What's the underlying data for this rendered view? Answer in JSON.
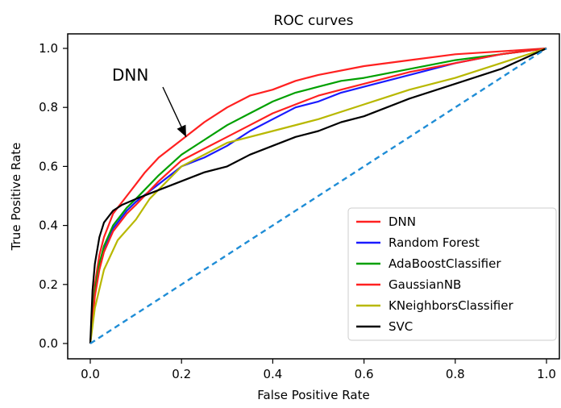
{
  "chart_data": {
    "type": "line",
    "title": "ROC curves",
    "xlabel": "False Positive Rate",
    "ylabel": "True Positive Rate",
    "xlim": [
      0.0,
      1.0
    ],
    "ylim": [
      0.0,
      1.0
    ],
    "xticks": [
      0.0,
      0.2,
      0.4,
      0.6,
      0.8,
      1.0
    ],
    "yticks": [
      0.0,
      0.2,
      0.4,
      0.6,
      0.8,
      1.0
    ],
    "xtick_labels": [
      "0.0",
      "0.2",
      "0.4",
      "0.6",
      "0.8",
      "1.0"
    ],
    "ytick_labels": [
      "0.0",
      "0.2",
      "0.4",
      "0.6",
      "0.8",
      "1.0"
    ],
    "grid": false,
    "legend_position": "lower-right",
    "annotation": {
      "text": "DNN",
      "x": 0.21,
      "y": 0.7
    },
    "diagonal": {
      "x": [
        0.0,
        1.0
      ],
      "y": [
        0.0,
        1.0
      ],
      "color": "#1f8dd6",
      "style": "dashed"
    },
    "series": [
      {
        "name": "DNN",
        "color": "#ff2020",
        "x": [
          0.0,
          0.01,
          0.02,
          0.03,
          0.05,
          0.08,
          0.1,
          0.12,
          0.15,
          0.2,
          0.25,
          0.3,
          0.35,
          0.4,
          0.45,
          0.5,
          0.6,
          0.7,
          0.8,
          0.9,
          1.0
        ],
        "y": [
          0.0,
          0.2,
          0.3,
          0.36,
          0.44,
          0.5,
          0.54,
          0.58,
          0.63,
          0.69,
          0.75,
          0.8,
          0.84,
          0.86,
          0.89,
          0.91,
          0.94,
          0.96,
          0.98,
          0.99,
          1.0
        ]
      },
      {
        "name": "Random Forest",
        "color": "#1a1aff",
        "x": [
          0.0,
          0.01,
          0.02,
          0.03,
          0.05,
          0.08,
          0.1,
          0.15,
          0.2,
          0.25,
          0.3,
          0.35,
          0.4,
          0.45,
          0.5,
          0.55,
          0.6,
          0.7,
          0.8,
          0.9,
          1.0
        ],
        "y": [
          0.0,
          0.17,
          0.26,
          0.32,
          0.39,
          0.45,
          0.48,
          0.54,
          0.6,
          0.63,
          0.67,
          0.72,
          0.76,
          0.8,
          0.82,
          0.85,
          0.87,
          0.91,
          0.95,
          0.98,
          1.0
        ]
      },
      {
        "name": "AdaBoostClassifier",
        "color": "#00a000",
        "x": [
          0.0,
          0.01,
          0.02,
          0.03,
          0.05,
          0.08,
          0.1,
          0.15,
          0.2,
          0.25,
          0.3,
          0.35,
          0.4,
          0.45,
          0.5,
          0.55,
          0.6,
          0.7,
          0.8,
          0.9,
          1.0
        ],
        "y": [
          0.0,
          0.18,
          0.27,
          0.33,
          0.4,
          0.46,
          0.49,
          0.57,
          0.64,
          0.69,
          0.74,
          0.78,
          0.82,
          0.85,
          0.87,
          0.89,
          0.9,
          0.93,
          0.96,
          0.98,
          1.0
        ]
      },
      {
        "name": "GaussianNB",
        "color": "#ff2020",
        "x": [
          0.0,
          0.01,
          0.02,
          0.03,
          0.05,
          0.08,
          0.1,
          0.15,
          0.2,
          0.25,
          0.3,
          0.35,
          0.4,
          0.45,
          0.5,
          0.55,
          0.6,
          0.7,
          0.8,
          0.9,
          1.0
        ],
        "y": [
          0.0,
          0.16,
          0.25,
          0.31,
          0.38,
          0.44,
          0.47,
          0.55,
          0.62,
          0.66,
          0.7,
          0.74,
          0.78,
          0.81,
          0.84,
          0.86,
          0.88,
          0.92,
          0.95,
          0.98,
          1.0
        ]
      },
      {
        "name": "KNeighborsClassifier",
        "color": "#b8b800",
        "x": [
          0.0,
          0.01,
          0.03,
          0.06,
          0.1,
          0.13,
          0.2,
          0.3,
          0.4,
          0.5,
          0.6,
          0.7,
          0.8,
          0.9,
          1.0
        ],
        "y": [
          0.0,
          0.12,
          0.25,
          0.35,
          0.42,
          0.49,
          0.6,
          0.68,
          0.72,
          0.76,
          0.81,
          0.86,
          0.9,
          0.95,
          1.0
        ]
      },
      {
        "name": "SVC",
        "color": "#000000",
        "x": [
          0.0,
          0.005,
          0.01,
          0.02,
          0.03,
          0.05,
          0.07,
          0.1,
          0.15,
          0.2,
          0.25,
          0.3,
          0.35,
          0.4,
          0.45,
          0.5,
          0.55,
          0.6,
          0.65,
          0.7,
          0.8,
          0.9,
          1.0
        ],
        "y": [
          0.0,
          0.18,
          0.27,
          0.36,
          0.41,
          0.45,
          0.47,
          0.49,
          0.52,
          0.55,
          0.58,
          0.6,
          0.64,
          0.67,
          0.7,
          0.72,
          0.75,
          0.77,
          0.8,
          0.83,
          0.88,
          0.93,
          1.0
        ]
      }
    ]
  }
}
